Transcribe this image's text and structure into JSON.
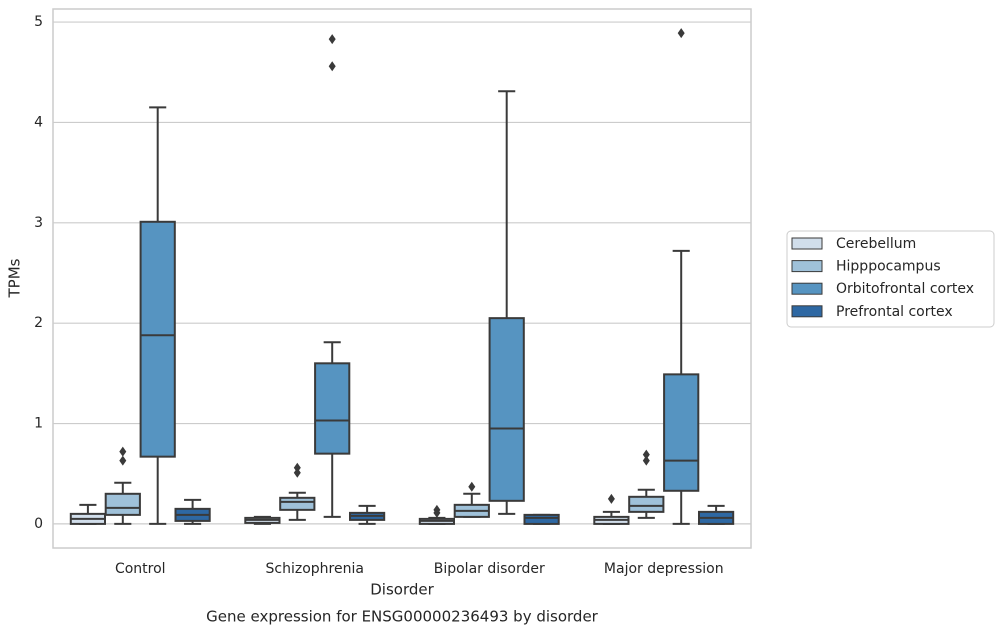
{
  "chart_data": {
    "type": "box",
    "title": "Gene expression for ENSG00000236493 by disorder",
    "xlabel": "Disorder",
    "ylabel": "TPMs",
    "categories": [
      "Control",
      "Schizophrenia",
      "Bipolar disorder",
      "Major depression"
    ],
    "ylim": [
      -0.24,
      5.13
    ],
    "yticks": [
      0,
      1,
      2,
      3,
      4,
      5
    ],
    "grid": true,
    "legend": "right",
    "series": [
      {
        "name": "Cerebellum",
        "color": "#d1deeb",
        "boxes": [
          {
            "min": 0,
            "q1": 0.0,
            "median": 0.05,
            "q3": 0.1,
            "max": 0.19,
            "outliers": []
          },
          {
            "min": 0,
            "q1": 0.01,
            "median": 0.04,
            "q3": 0.06,
            "max": 0.07,
            "outliers": []
          },
          {
            "min": 0,
            "q1": 0.0,
            "median": 0.03,
            "q3": 0.05,
            "max": 0.06,
            "outliers": [
              0.11,
              0.14
            ]
          },
          {
            "min": 0,
            "q1": 0.0,
            "median": 0.04,
            "q3": 0.07,
            "max": 0.12,
            "outliers": [
              0.25
            ]
          }
        ]
      },
      {
        "name": "Hipppocampus",
        "color": "#9fc1d9",
        "boxes": [
          {
            "min": 0,
            "q1": 0.09,
            "median": 0.16,
            "q3": 0.3,
            "max": 0.41,
            "outliers": [
              0.63,
              0.72
            ]
          },
          {
            "min": 0.04,
            "q1": 0.14,
            "median": 0.22,
            "q3": 0.26,
            "max": 0.31,
            "outliers": [
              0.51,
              0.56
            ]
          },
          {
            "min": 0.07,
            "q1": 0.07,
            "median": 0.13,
            "q3": 0.19,
            "max": 0.3,
            "outliers": [
              0.37
            ]
          },
          {
            "min": 0.06,
            "q1": 0.12,
            "median": 0.18,
            "q3": 0.27,
            "max": 0.34,
            "outliers": [
              0.63,
              0.69
            ]
          }
        ]
      },
      {
        "name": "Orbitofrontal cortex",
        "color": "#5694c1",
        "boxes": [
          {
            "min": 0,
            "q1": 0.67,
            "median": 1.88,
            "q3": 3.01,
            "max": 4.15,
            "outliers": []
          },
          {
            "min": 0.07,
            "q1": 0.7,
            "median": 1.03,
            "q3": 1.6,
            "max": 1.81,
            "outliers": [
              4.56,
              4.83
            ]
          },
          {
            "min": 0.1,
            "q1": 0.23,
            "median": 0.95,
            "q3": 2.05,
            "max": 4.31,
            "outliers": []
          },
          {
            "min": 0,
            "q1": 0.33,
            "median": 0.63,
            "q3": 1.49,
            "max": 2.72,
            "outliers": [
              4.89
            ]
          }
        ]
      },
      {
        "name": "Prefrontal cortex",
        "color": "#2e68a3",
        "boxes": [
          {
            "min": 0,
            "q1": 0.03,
            "median": 0.09,
            "q3": 0.15,
            "max": 0.24,
            "outliers": []
          },
          {
            "min": 0,
            "q1": 0.04,
            "median": 0.08,
            "q3": 0.11,
            "max": 0.18,
            "outliers": []
          },
          {
            "min": 0,
            "q1": 0.0,
            "median": 0.06,
            "q3": 0.09,
            "max": 0.09,
            "outliers": []
          },
          {
            "min": 0,
            "q1": 0.0,
            "median": 0.06,
            "q3": 0.12,
            "max": 0.18,
            "outliers": []
          }
        ]
      }
    ]
  }
}
